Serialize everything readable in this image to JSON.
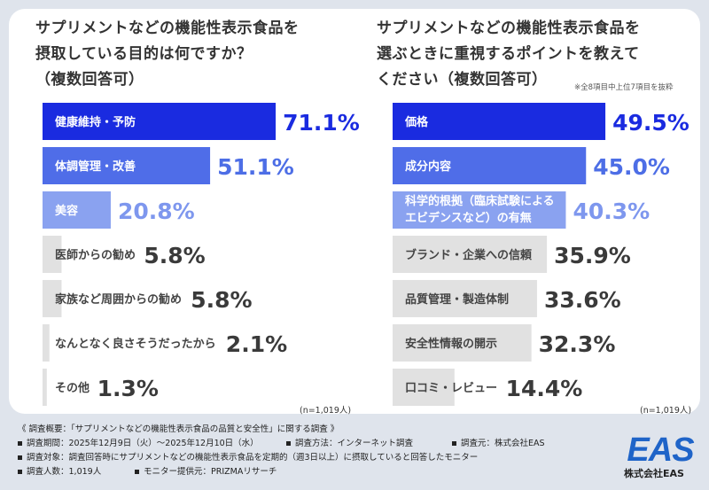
{
  "chart_data": [
    {
      "type": "bar",
      "orientation": "horizontal",
      "title": "サプリメントなどの機能性表示食品を\n摂取している目的は何ですか？\n（複数回答可）",
      "categories": [
        "健康維持・予防",
        "体調管理・改善",
        "美容",
        "医師からの勧め",
        "家族など周囲からの勧め",
        "なんとなく良さそうだったから",
        "その他"
      ],
      "values": [
        71.1,
        51.1,
        20.8,
        5.8,
        5.8,
        2.1,
        1.3
      ],
      "value_labels": [
        "71.1%",
        "51.1%",
        "20.8%",
        "5.8%",
        "5.8%",
        "2.1%",
        "1.3%"
      ],
      "sample": "(n=1,019人)",
      "xlim": [
        0,
        100
      ]
    },
    {
      "type": "bar",
      "orientation": "horizontal",
      "title": "サプリメントなどの機能性表示食品を\n選ぶときに重視するポイントを教えて\nください（複数回答可）",
      "note": "※全8項目中上位7項目を抜粋",
      "categories": [
        "価格",
        "成分内容",
        "科学的根拠（臨床試験による\nエビデンスなど）の有無",
        "ブランド・企業への信頼",
        "品質管理・製造体制",
        "安全性情報の開示",
        "口コミ・レビュー"
      ],
      "values": [
        49.5,
        45.0,
        40.3,
        35.9,
        33.6,
        32.3,
        14.4
      ],
      "value_labels": [
        "49.5%",
        "45.0%",
        "40.3%",
        "35.9%",
        "33.6%",
        "32.3%",
        "14.4%"
      ],
      "sample": "(n=1,019人)",
      "xlim": [
        0,
        60
      ]
    }
  ],
  "colors": {
    "background": "#dfe4ec",
    "card": "#ffffff",
    "bar_primary": "#1a2be0",
    "bar_secondary": "#4f6de8",
    "bar_tertiary": "#8aa2f0",
    "bar_gray": "#e1e1e1",
    "pct_primary": "#1a2be0",
    "pct_secondary": "#4d6ee6",
    "pct_tertiary": "#7e97ee",
    "pct_gray": "#3a3a3a",
    "logo": "#1f64c8"
  },
  "footer": {
    "overview": "《 調査概要：「サプリメントなどの機能性表示食品の品質と安全性」に関する調査 》",
    "period": "調査期間：2025年12月9日（火）～2025年12月10日（水）",
    "method": "調査方法：インターネット調査",
    "source": "調査元：株式会社EAS",
    "target": "調査対象：調査回答時にサプリメントなどの機能性表示食品を定期的（週3日以上）に摂取していると回答したモニター",
    "count": "調査人数：1,019人",
    "provider": "モニター提供元：PRIZMAリサーチ"
  },
  "logo": {
    "mark": "EAS",
    "company": "株式会社EAS"
  }
}
